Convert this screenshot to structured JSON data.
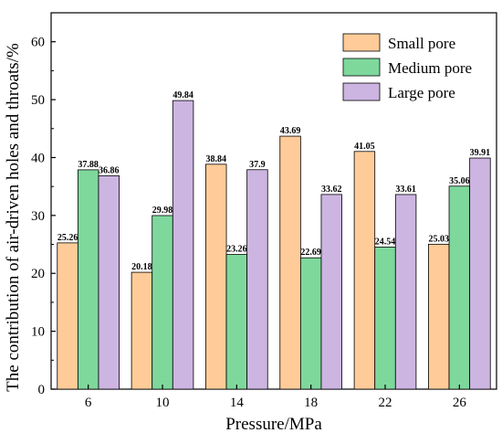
{
  "chart_data": {
    "type": "bar",
    "title": "",
    "xlabel": "Pressure/MPa",
    "ylabel": "The contribution of air-driven holes and throats/%",
    "ylim": [
      0,
      65
    ],
    "yticks": [
      0,
      10,
      20,
      30,
      40,
      50,
      60
    ],
    "grid": false,
    "legend_position": "top-right",
    "categories": [
      "6",
      "10",
      "14",
      "18",
      "22",
      "26"
    ],
    "series": [
      {
        "name": "Small pore",
        "color": "#FFCC99",
        "values": [
          25.26,
          20.18,
          38.84,
          43.69,
          41.05,
          25.03
        ],
        "labels": [
          "25.26",
          "20.18",
          "38.84",
          "43.69",
          "41.05",
          "25.03"
        ]
      },
      {
        "name": "Medium pore",
        "color": "#7ED89C",
        "values": [
          37.88,
          29.98,
          23.26,
          22.69,
          24.54,
          35.06
        ],
        "labels": [
          "37.88",
          "29.98",
          "23.26",
          "22.69",
          "24.54",
          "35.06"
        ]
      },
      {
        "name": "Large pore",
        "color": "#CDB5E2",
        "values": [
          36.86,
          49.84,
          37.9,
          33.62,
          33.61,
          39.91
        ],
        "labels": [
          "36.86",
          "49.84",
          "37.9",
          "33.62",
          "33.61",
          "39.91"
        ]
      }
    ]
  }
}
